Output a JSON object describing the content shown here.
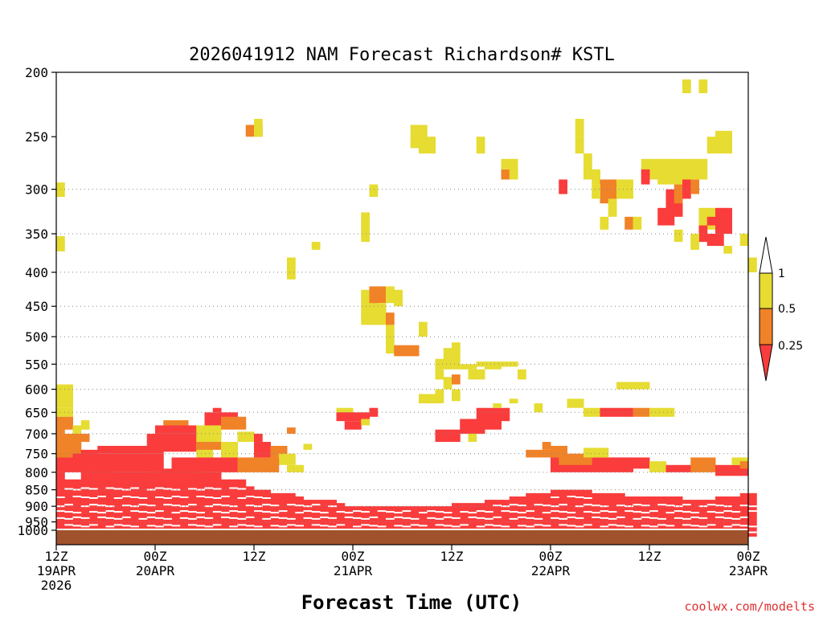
{
  "chart_data": {
    "type": "heatmap",
    "title": "2026041912 NAM Forecast Richardson# KSTL",
    "xlabel": "Forecast Time (UTC)",
    "ylabel": "",
    "credit": "coolwx.com/modelts",
    "y_scale": "log",
    "ylim": [
      1000,
      200
    ],
    "xlim_hours": [
      0,
      84
    ],
    "y_ticks": [
      200,
      250,
      300,
      350,
      400,
      450,
      500,
      550,
      600,
      650,
      700,
      750,
      800,
      850,
      900,
      950,
      1000
    ],
    "gridlines_at": [
      300,
      350,
      400,
      450,
      500,
      550,
      600,
      650,
      700,
      750,
      800,
      850,
      900,
      950
    ],
    "x_ticks": [
      {
        "hour": 0,
        "line1": "12Z",
        "line2": "19APR",
        "line3": "2026"
      },
      {
        "hour": 12,
        "line1": "00Z",
        "line2": "20APR",
        "line3": ""
      },
      {
        "hour": 24,
        "line1": "12Z",
        "line2": "",
        "line3": ""
      },
      {
        "hour": 36,
        "line1": "00Z",
        "line2": "21APR",
        "line3": ""
      },
      {
        "hour": 48,
        "line1": "12Z",
        "line2": "",
        "line3": ""
      },
      {
        "hour": 60,
        "line1": "00Z",
        "line2": "22APR",
        "line3": ""
      },
      {
        "hour": 72,
        "line1": "12Z",
        "line2": "",
        "line3": ""
      },
      {
        "hour": 84,
        "line1": "00Z",
        "line2": "23APR",
        "line3": ""
      }
    ],
    "legend": {
      "levels": [
        "1",
        "0.5",
        "0.25"
      ],
      "colors": {
        "above_1": "#ffffff",
        "r050_100": "#e6dc32",
        "r025_050": "#f08228",
        "below_025": "#fa3c3c"
      },
      "placement": "right"
    },
    "ground_color": "#a0522d",
    "surface_pressure": 1000,
    "cell_hours": 1,
    "categories_note": "cells: [hour_start, hour_end, p_top, p_bottom, cat] cat 1=0.5-1 (yellow), 2=0.25-0.5 (orange), 3=<0.25 (red)",
    "cells": [
      [
        0,
        1,
        293,
        308,
        1
      ],
      [
        0,
        1,
        353,
        372,
        1
      ],
      [
        0,
        2,
        590,
        640,
        1
      ],
      [
        0,
        2,
        640,
        660,
        1
      ],
      [
        0,
        1,
        660,
        700,
        2
      ],
      [
        1,
        2,
        660,
        690,
        2
      ],
      [
        2,
        3,
        680,
        700,
        1
      ],
      [
        3,
        4,
        668,
        690,
        1
      ],
      [
        0,
        1,
        700,
        800,
        2
      ],
      [
        1,
        4,
        700,
        720,
        2
      ],
      [
        1,
        3,
        720,
        760,
        2
      ],
      [
        3,
        5,
        740,
        760,
        3
      ],
      [
        0,
        2,
        760,
        800,
        3
      ],
      [
        2,
        13,
        750,
        800,
        3
      ],
      [
        5,
        13,
        730,
        750,
        3
      ],
      [
        11,
        17,
        700,
        745,
        3
      ],
      [
        12,
        17,
        680,
        700,
        3
      ],
      [
        13,
        16,
        668,
        680,
        2
      ],
      [
        17,
        19,
        720,
        760,
        1
      ],
      [
        17,
        20,
        720,
        740,
        2
      ],
      [
        18,
        22,
        650,
        680,
        3
      ],
      [
        19,
        20,
        640,
        650,
        3
      ],
      [
        17,
        20,
        680,
        720,
        1
      ],
      [
        20,
        23,
        660,
        690,
        2
      ],
      [
        22,
        24,
        695,
        720,
        1
      ],
      [
        17,
        20,
        760,
        800,
        1
      ],
      [
        20,
        22,
        720,
        760,
        1
      ],
      [
        24,
        25,
        700,
        720,
        3
      ],
      [
        24,
        26,
        720,
        760,
        3
      ],
      [
        26,
        28,
        730,
        760,
        2
      ],
      [
        27,
        29,
        750,
        780,
        1
      ],
      [
        28,
        30,
        780,
        800,
        1
      ],
      [
        14,
        22,
        760,
        800,
        3
      ],
      [
        22,
        27,
        760,
        800,
        2
      ],
      [
        23,
        25,
        240,
        250,
        2
      ],
      [
        24,
        25,
        235,
        250,
        1
      ],
      [
        28,
        29,
        380,
        410,
        1
      ],
      [
        31,
        32,
        360,
        370,
        1
      ],
      [
        28,
        29,
        685,
        700,
        2
      ],
      [
        30,
        31,
        725,
        740,
        1
      ],
      [
        34,
        36,
        640,
        660,
        1
      ],
      [
        34,
        38,
        650,
        670,
        3
      ],
      [
        35,
        37,
        670,
        690,
        3
      ],
      [
        37,
        38,
        665,
        680,
        1
      ],
      [
        38,
        39,
        640,
        660,
        3
      ],
      [
        37,
        39,
        425,
        480,
        1
      ],
      [
        37,
        38,
        325,
        350,
        1
      ],
      [
        38,
        39,
        295,
        308,
        1
      ],
      [
        37,
        38,
        350,
        360,
        1
      ],
      [
        38,
        40,
        420,
        445,
        2
      ],
      [
        40,
        41,
        420,
        445,
        1
      ],
      [
        39,
        40,
        445,
        480,
        1
      ],
      [
        40,
        41,
        460,
        480,
        2
      ],
      [
        41,
        42,
        425,
        450,
        1
      ],
      [
        40,
        41,
        480,
        530,
        1
      ],
      [
        41,
        44,
        515,
        535,
        2
      ],
      [
        44,
        45,
        475,
        500,
        1
      ],
      [
        46,
        47,
        540,
        560,
        1
      ],
      [
        47,
        48,
        520,
        560,
        1
      ],
      [
        48,
        49,
        510,
        560,
        1
      ],
      [
        49,
        50,
        550,
        560,
        1
      ],
      [
        47,
        48,
        575,
        600,
        1
      ],
      [
        48,
        49,
        570,
        590,
        2
      ],
      [
        48,
        49,
        600,
        625,
        1
      ],
      [
        46,
        47,
        600,
        625,
        1
      ],
      [
        44,
        47,
        610,
        630,
        1
      ],
      [
        50,
        51,
        550,
        560,
        1
      ],
      [
        51,
        53,
        545,
        555,
        1
      ],
      [
        52,
        54,
        545,
        560,
        1
      ],
      [
        54,
        56,
        545,
        555,
        1
      ],
      [
        50,
        52,
        560,
        580,
        1
      ],
      [
        46,
        47,
        560,
        580,
        1
      ],
      [
        46,
        49,
        690,
        720,
        3
      ],
      [
        49,
        52,
        665,
        700,
        3
      ],
      [
        51,
        55,
        640,
        670,
        3
      ],
      [
        52,
        54,
        655,
        690,
        3
      ],
      [
        50,
        51,
        700,
        720,
        1
      ],
      [
        55,
        56,
        620,
        630,
        1
      ],
      [
        53,
        54,
        630,
        640,
        1
      ],
      [
        43,
        44,
        250,
        250,
        1
      ],
      [
        43,
        45,
        240,
        260,
        1
      ],
      [
        44,
        45,
        255,
        265,
        1
      ],
      [
        45,
        46,
        250,
        265,
        1
      ],
      [
        51,
        52,
        250,
        265,
        1
      ],
      [
        54,
        55,
        280,
        290,
        2
      ],
      [
        55,
        56,
        270,
        290,
        1
      ],
      [
        54,
        55,
        270,
        280,
        1
      ],
      [
        61,
        62,
        290,
        305,
        3
      ],
      [
        63,
        64,
        235,
        250,
        1
      ],
      [
        63,
        64,
        250,
        265,
        1
      ],
      [
        64,
        65,
        265,
        290,
        1
      ],
      [
        65,
        66,
        280,
        295,
        1
      ],
      [
        66,
        68,
        290,
        315,
        2
      ],
      [
        65,
        66,
        295,
        310,
        1
      ],
      [
        68,
        70,
        290,
        310,
        1
      ],
      [
        67,
        68,
        310,
        330,
        1
      ],
      [
        69,
        70,
        330,
        345,
        2
      ],
      [
        70,
        71,
        330,
        345,
        1
      ],
      [
        71,
        73,
        270,
        290,
        1
      ],
      [
        71,
        72,
        280,
        295,
        3
      ],
      [
        73,
        77,
        270,
        295,
        1
      ],
      [
        74,
        76,
        300,
        330,
        3
      ],
      [
        73,
        75,
        320,
        340,
        3
      ],
      [
        75,
        76,
        295,
        315,
        2
      ],
      [
        76,
        77,
        290,
        310,
        3
      ],
      [
        77,
        78,
        290,
        305,
        2
      ],
      [
        77,
        79,
        270,
        290,
        1
      ],
      [
        78,
        80,
        320,
        345,
        1
      ],
      [
        79,
        80,
        330,
        340,
        3
      ],
      [
        80,
        82,
        320,
        350,
        3
      ],
      [
        78,
        79,
        340,
        360,
        3
      ],
      [
        76,
        77,
        205,
        215,
        1
      ],
      [
        78,
        79,
        205,
        215,
        1
      ],
      [
        79,
        80,
        250,
        265,
        1
      ],
      [
        80,
        82,
        245,
        265,
        1
      ],
      [
        83,
        84,
        350,
        365,
        1
      ],
      [
        84,
        85,
        380,
        400,
        1
      ],
      [
        77,
        78,
        350,
        370,
        1
      ],
      [
        79,
        81,
        350,
        365,
        3
      ],
      [
        81,
        82,
        365,
        375,
        1
      ],
      [
        75,
        76,
        345,
        360,
        1
      ],
      [
        66,
        67,
        330,
        345,
        1
      ],
      [
        62,
        64,
        620,
        640,
        1
      ],
      [
        64,
        66,
        640,
        660,
        1
      ],
      [
        66,
        70,
        640,
        660,
        3
      ],
      [
        70,
        72,
        640,
        660,
        2
      ],
      [
        72,
        75,
        640,
        660,
        1
      ],
      [
        68,
        72,
        585,
        600,
        1
      ],
      [
        58,
        59,
        630,
        650,
        1
      ],
      [
        56,
        57,
        560,
        580,
        1
      ],
      [
        59,
        60,
        720,
        740,
        2
      ],
      [
        57,
        60,
        740,
        760,
        2
      ],
      [
        60,
        62,
        730,
        760,
        2
      ],
      [
        60,
        70,
        760,
        800,
        3
      ],
      [
        61,
        65,
        750,
        780,
        2
      ],
      [
        64,
        67,
        735,
        760,
        1
      ],
      [
        67,
        72,
        760,
        790,
        3
      ],
      [
        72,
        74,
        770,
        800,
        1
      ],
      [
        74,
        77,
        780,
        800,
        3
      ],
      [
        77,
        80,
        760,
        800,
        2
      ],
      [
        80,
        84,
        780,
        810,
        3
      ],
      [
        82,
        84,
        760,
        780,
        1
      ],
      [
        83,
        84,
        770,
        790,
        2
      ]
    ],
    "dense_band": {
      "hour_start": 0,
      "hour_end": 84,
      "red_top_pressures_by_hour": [
        800,
        820,
        820,
        790,
        790,
        790,
        790,
        800,
        800,
        800,
        800,
        800,
        790,
        790,
        790,
        790,
        790,
        790,
        800,
        800,
        820,
        820,
        820,
        840,
        850,
        850,
        860,
        860,
        860,
        870,
        880,
        880,
        880,
        880,
        890,
        900,
        900,
        900,
        900,
        900,
        900,
        900,
        900,
        900,
        900,
        900,
        900,
        900,
        890,
        890,
        890,
        890,
        880,
        880,
        880,
        870,
        870,
        860,
        860,
        860,
        850,
        850,
        850,
        850,
        850,
        860,
        860,
        860,
        860,
        870,
        870,
        870,
        870,
        870,
        870,
        870,
        880,
        880,
        880,
        880,
        870,
        870,
        870,
        860,
        860
      ]
    }
  }
}
